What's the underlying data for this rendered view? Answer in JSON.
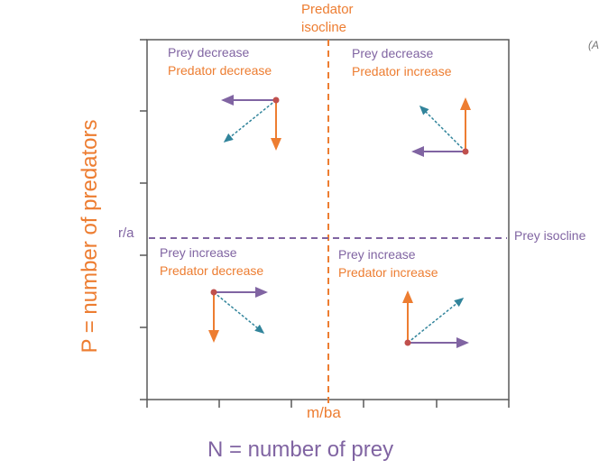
{
  "colors": {
    "prey": "#8064a2",
    "predator": "#ed7d31",
    "net": "#31849b",
    "point": "#c0504d",
    "axis": "#595959"
  },
  "labels": {
    "predator_isocline_line1": "Predator",
    "predator_isocline_line2": "isocline",
    "prey_isocline": "Prey isocline",
    "r_over_a": "r/a",
    "m_over_ba": "m/ba",
    "y_axis": "P = number of predators",
    "x_axis": "N = number of prey",
    "corner_mark": "(A"
  },
  "quadrants": {
    "top_left": {
      "prey": "Prey decrease",
      "predator": "Predator decrease"
    },
    "top_right": {
      "prey": "Prey decrease",
      "predator": "Predator increase"
    },
    "bottom_left": {
      "prey": "Prey increase",
      "predator": "Predator decrease"
    },
    "bottom_right": {
      "prey": "Prey increase",
      "predator": "Predator increase"
    }
  }
}
